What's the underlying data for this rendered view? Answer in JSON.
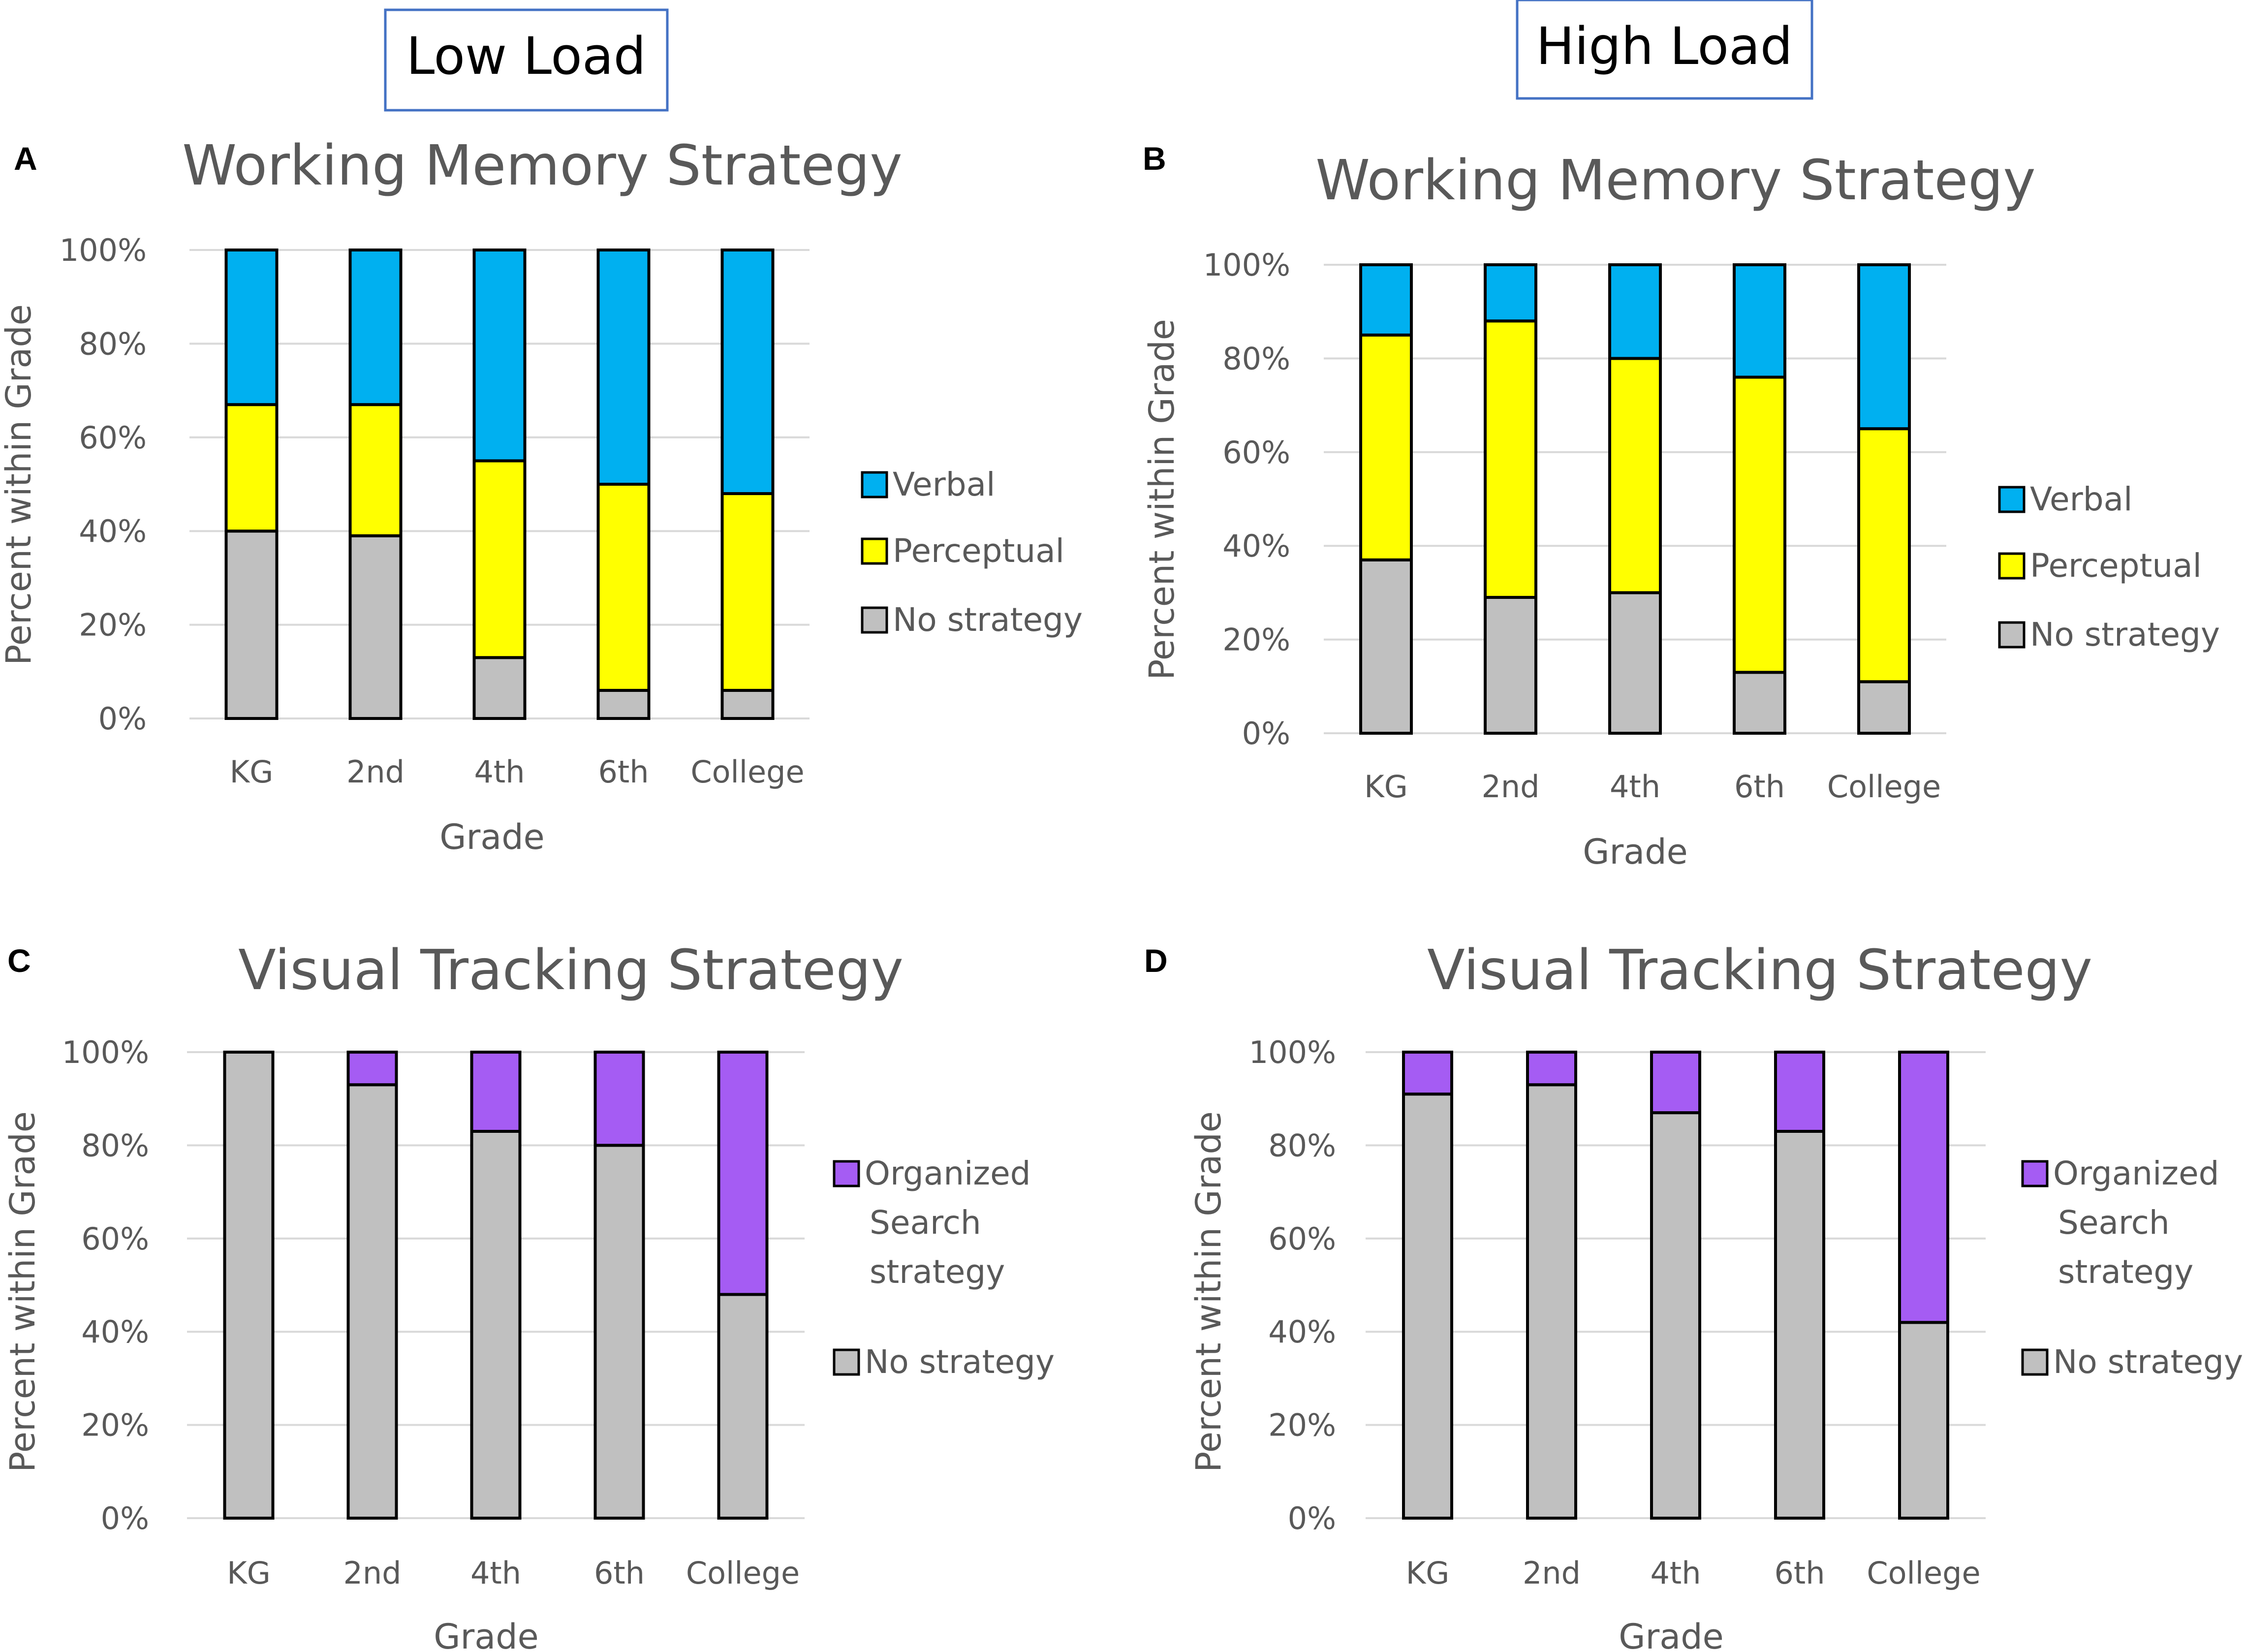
{
  "headers": {
    "low_load": "Low Load",
    "high_load": "High Load"
  },
  "colors": {
    "verbal": "#00b0f0",
    "perceptual": "#ffff00",
    "no_strategy": "#c0c0c0",
    "organized": "#a55cf3",
    "header_border": "#4472c4",
    "title": "#595959",
    "tick": "#595959",
    "grid": "#d9d9d9"
  },
  "chart_data": [
    {
      "id": "A",
      "letter": "A",
      "type": "bar",
      "stacked": true,
      "title": "Working Memory Strategy",
      "xlabel": "Grade",
      "ylabel": "Percent within Grade",
      "categories": [
        "KG",
        "2nd",
        "4th",
        "6th",
        "College"
      ],
      "yticks": [
        "0%",
        "20%",
        "40%",
        "60%",
        "80%",
        "100%"
      ],
      "ylim": [
        0,
        100
      ],
      "series": [
        {
          "name": "No strategy",
          "color": "#c0c0c0",
          "values": [
            40,
            39,
            13,
            6,
            6
          ]
        },
        {
          "name": "Perceptual",
          "color": "#ffff00",
          "values": [
            27,
            28,
            42,
            44,
            42
          ]
        },
        {
          "name": "Verbal",
          "color": "#00b0f0",
          "values": [
            33,
            33,
            45,
            50,
            52
          ]
        }
      ],
      "legend": [
        {
          "name": "Verbal",
          "color": "#00b0f0"
        },
        {
          "name": "Perceptual",
          "color": "#ffff00"
        },
        {
          "name": "No strategy",
          "color": "#c0c0c0"
        }
      ],
      "legend_position": "right"
    },
    {
      "id": "B",
      "letter": "B",
      "type": "bar",
      "stacked": true,
      "title": "Working Memory Strategy",
      "xlabel": "Grade",
      "ylabel": "Percent within Grade",
      "categories": [
        "KG",
        "2nd",
        "4th",
        "6th",
        "College"
      ],
      "yticks": [
        "0%",
        "20%",
        "40%",
        "60%",
        "80%",
        "100%"
      ],
      "ylim": [
        0,
        100
      ],
      "series": [
        {
          "name": "No strategy",
          "color": "#c0c0c0",
          "values": [
            37,
            29,
            30,
            13,
            11
          ]
        },
        {
          "name": "Perceptual",
          "color": "#ffff00",
          "values": [
            48,
            59,
            50,
            63,
            54
          ]
        },
        {
          "name": "Verbal",
          "color": "#00b0f0",
          "values": [
            15,
            12,
            20,
            24,
            35
          ]
        }
      ],
      "legend": [
        {
          "name": "Verbal",
          "color": "#00b0f0"
        },
        {
          "name": "Perceptual",
          "color": "#ffff00"
        },
        {
          "name": "No strategy",
          "color": "#c0c0c0"
        }
      ],
      "legend_position": "right"
    },
    {
      "id": "C",
      "letter": "C",
      "type": "bar",
      "stacked": true,
      "title": "Visual Tracking Strategy",
      "xlabel": "Grade",
      "ylabel": "Percent within Grade",
      "categories": [
        "KG",
        "2nd",
        "4th",
        "6th",
        "College"
      ],
      "yticks": [
        "0%",
        "20%",
        "40%",
        "60%",
        "80%",
        "100%"
      ],
      "ylim": [
        0,
        100
      ],
      "series": [
        {
          "name": "No strategy",
          "color": "#c0c0c0",
          "values": [
            100,
            93,
            83,
            80,
            48
          ]
        },
        {
          "name": "Organized Search strategy",
          "color": "#a55cf3",
          "values": [
            0,
            7,
            17,
            20,
            52
          ]
        }
      ],
      "legend": [
        {
          "name": "Organized Search strategy",
          "lines": [
            "Organized",
            "Search",
            "strategy"
          ],
          "color": "#a55cf3"
        },
        {
          "name": "No strategy",
          "lines": [
            "No strategy"
          ],
          "color": "#c0c0c0"
        }
      ],
      "legend_position": "right"
    },
    {
      "id": "D",
      "letter": "D",
      "type": "bar",
      "stacked": true,
      "title": "Visual Tracking Strategy",
      "xlabel": "Grade",
      "ylabel": "Percent within Grade",
      "categories": [
        "KG",
        "2nd",
        "4th",
        "6th",
        "College"
      ],
      "yticks": [
        "0%",
        "20%",
        "40%",
        "60%",
        "80%",
        "100%"
      ],
      "ylim": [
        0,
        100
      ],
      "series": [
        {
          "name": "No strategy",
          "color": "#c0c0c0",
          "values": [
            91,
            93,
            87,
            83,
            42
          ]
        },
        {
          "name": "Organized Search strategy",
          "color": "#a55cf3",
          "values": [
            9,
            7,
            13,
            17,
            58
          ]
        }
      ],
      "legend": [
        {
          "name": "Organized Search strategy",
          "lines": [
            "Organized",
            "Search",
            "strategy"
          ],
          "color": "#a55cf3"
        },
        {
          "name": "No strategy",
          "lines": [
            "No strategy"
          ],
          "color": "#c0c0c0"
        }
      ],
      "legend_position": "right"
    }
  ]
}
